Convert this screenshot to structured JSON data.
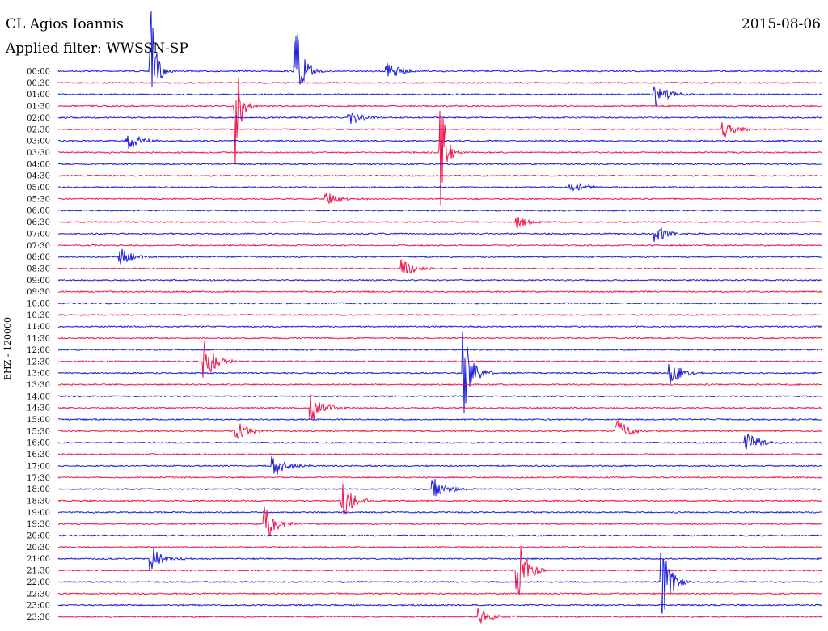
{
  "header": {
    "station": "CL Agios Ioannis",
    "date": "2015-08-06",
    "filter": "Applied filter: WWSSN-SP",
    "channel": "EHZ - 120000"
  },
  "colors": {
    "even_line": "#1a1adc",
    "odd_line": "#f0144a"
  },
  "chart_data": {
    "type": "line",
    "title": "CL Agios Ioannis",
    "subtitle": "Applied filter: WWSSN-SP",
    "ylabel": "EHZ - 120000",
    "date": "2015-08-06",
    "rows": [
      "00:00",
      "00:30",
      "01:00",
      "01:30",
      "02:00",
      "02:30",
      "03:00",
      "03:30",
      "04:00",
      "04:30",
      "05:00",
      "05:30",
      "06:00",
      "06:30",
      "07:00",
      "07:30",
      "08:00",
      "08:30",
      "09:00",
      "09:30",
      "10:00",
      "10:30",
      "11:00",
      "11:30",
      "12:00",
      "12:30",
      "13:00",
      "13:30",
      "14:00",
      "14:30",
      "15:00",
      "15:30",
      "16:00",
      "16:30",
      "17:00",
      "17:30",
      "18:00",
      "18:30",
      "19:00",
      "19:30",
      "20:00",
      "20:30",
      "21:00",
      "21:30",
      "22:00",
      "22:30",
      "23:00",
      "23:30"
    ],
    "events": [
      {
        "row": 0,
        "pos": 0.12,
        "amp": 1.0
      },
      {
        "row": 0,
        "pos": 0.31,
        "amp": 0.8
      },
      {
        "row": 0,
        "pos": 0.43,
        "amp": 0.15
      },
      {
        "row": 2,
        "pos": 0.78,
        "amp": 0.2
      },
      {
        "row": 3,
        "pos": 0.23,
        "amp": 1.0
      },
      {
        "row": 4,
        "pos": 0.38,
        "amp": 0.12
      },
      {
        "row": 5,
        "pos": 0.87,
        "amp": 0.15
      },
      {
        "row": 6,
        "pos": 0.09,
        "amp": 0.15
      },
      {
        "row": 7,
        "pos": 0.5,
        "amp": 1.0
      },
      {
        "row": 10,
        "pos": 0.67,
        "amp": 0.15
      },
      {
        "row": 11,
        "pos": 0.35,
        "amp": 0.12
      },
      {
        "row": 13,
        "pos": 0.6,
        "amp": 0.12
      },
      {
        "row": 14,
        "pos": 0.78,
        "amp": 0.15
      },
      {
        "row": 16,
        "pos": 0.08,
        "amp": 0.15
      },
      {
        "row": 17,
        "pos": 0.45,
        "amp": 0.15
      },
      {
        "row": 25,
        "pos": 0.19,
        "amp": 0.35
      },
      {
        "row": 26,
        "pos": 0.53,
        "amp": 0.7
      },
      {
        "row": 26,
        "pos": 0.8,
        "amp": 0.2
      },
      {
        "row": 29,
        "pos": 0.33,
        "amp": 0.25
      },
      {
        "row": 31,
        "pos": 0.23,
        "amp": 0.2
      },
      {
        "row": 31,
        "pos": 0.73,
        "amp": 0.2
      },
      {
        "row": 32,
        "pos": 0.9,
        "amp": 0.2
      },
      {
        "row": 34,
        "pos": 0.28,
        "amp": 0.2
      },
      {
        "row": 36,
        "pos": 0.49,
        "amp": 0.2
      },
      {
        "row": 37,
        "pos": 0.37,
        "amp": 0.3
      },
      {
        "row": 39,
        "pos": 0.27,
        "amp": 0.3
      },
      {
        "row": 42,
        "pos": 0.12,
        "amp": 0.2
      },
      {
        "row": 43,
        "pos": 0.6,
        "amp": 0.55
      },
      {
        "row": 44,
        "pos": 0.79,
        "amp": 0.7
      },
      {
        "row": 47,
        "pos": 0.55,
        "amp": 0.15
      }
    ],
    "grid": false,
    "legend": "none"
  }
}
